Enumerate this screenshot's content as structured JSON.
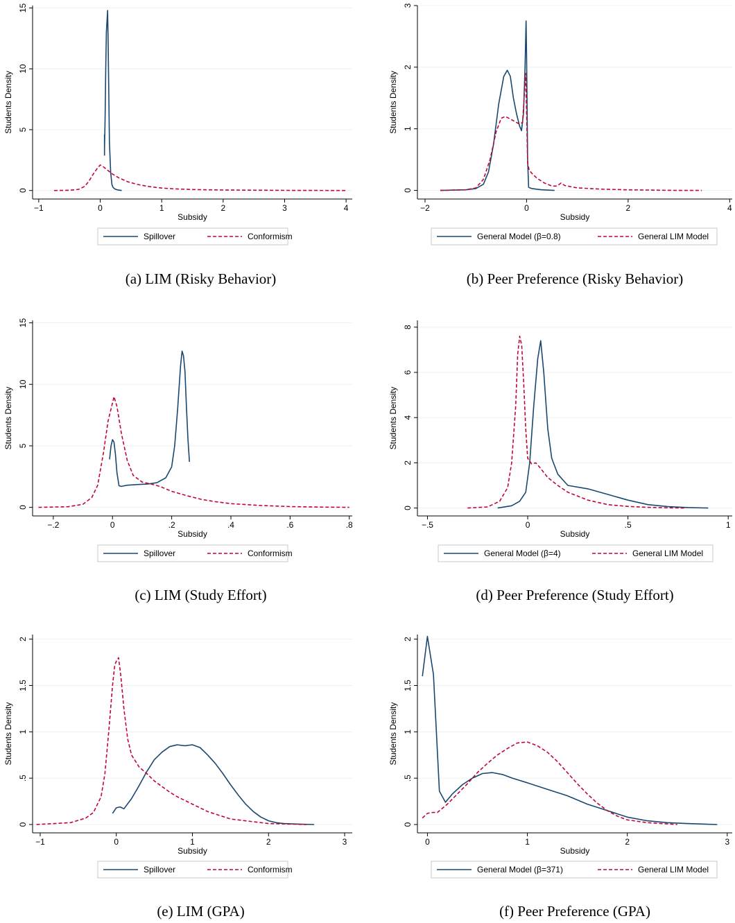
{
  "colors": {
    "blue": "#1a476f",
    "red": "#c10534"
  },
  "chart_data": [
    {
      "type": "line",
      "caption": "(a)  LIM (Risky Behavior)",
      "xlabel": "Subsidy",
      "ylabel": "Students Density",
      "xlim": [
        -1.1,
        4.1
      ],
      "ylim": [
        -0.7,
        15.2
      ],
      "xticks": [
        -1,
        0,
        1,
        2,
        3,
        4
      ],
      "xtick_labels": [
        "−1",
        "0",
        "1",
        "2",
        "3",
        "4"
      ],
      "yticks": [
        0,
        5,
        10,
        15
      ],
      "ytick_labels": [
        "0",
        "5",
        "10",
        "15"
      ],
      "grid": true,
      "legend_position": "bottom",
      "series": [
        {
          "name": "Spillover",
          "style": "solid",
          "color": "#1a476f",
          "x": [
            0.07,
            0.07,
            0.07,
            0.08,
            0.09,
            0.1,
            0.12,
            0.13,
            0.14,
            0.15,
            0.17,
            0.19,
            0.21,
            0.24,
            0.28,
            0.35
          ],
          "y": [
            4.6,
            2.9,
            3.4,
            6,
            10,
            13,
            14.8,
            12,
            8,
            4,
            1.5,
            0.5,
            0.25,
            0.12,
            0.05,
            0
          ]
        },
        {
          "name": "Conformism",
          "style": "dashed",
          "color": "#c10534",
          "x": [
            -0.75,
            -0.5,
            -0.35,
            -0.25,
            -0.18,
            -0.12,
            -0.05,
            0,
            0.05,
            0.1,
            0.2,
            0.3,
            0.45,
            0.6,
            0.8,
            1,
            1.2,
            1.5,
            2,
            3,
            4
          ],
          "y": [
            0,
            0.02,
            0.1,
            0.35,
            0.8,
            1.3,
            1.8,
            2.1,
            1.95,
            1.75,
            1.35,
            1.05,
            0.72,
            0.5,
            0.32,
            0.2,
            0.14,
            0.08,
            0.04,
            0.01,
            0
          ]
        }
      ]
    },
    {
      "type": "line",
      "caption": "(b)  Peer Preference (Risky Behavior)",
      "xlabel": "Subsidy",
      "ylabel": "Students Density",
      "xlim": [
        -2.15,
        4.05
      ],
      "ylim": [
        -0.14,
        3.0
      ],
      "xticks": [
        -2,
        0,
        2,
        4
      ],
      "xtick_labels": [
        "−2",
        "0",
        "2",
        "4"
      ],
      "yticks": [
        0,
        1,
        2,
        3
      ],
      "ytick_labels": [
        "0",
        "1",
        "2",
        "3"
      ],
      "grid": true,
      "legend_position": "bottom",
      "series": [
        {
          "name": "General Model (β=0.8)",
          "style": "solid",
          "color": "#1a476f",
          "x": [
            -1.7,
            -1.2,
            -1.0,
            -0.85,
            -0.75,
            -0.65,
            -0.55,
            -0.45,
            -0.38,
            -0.32,
            -0.26,
            -0.2,
            -0.14,
            -0.1,
            -0.06,
            -0.03,
            -0.01,
            0,
            0.02,
            0.04,
            0.1,
            0.3,
            0.55
          ],
          "y": [
            0,
            0.01,
            0.03,
            0.1,
            0.3,
            0.75,
            1.4,
            1.85,
            1.95,
            1.85,
            1.5,
            1.25,
            1.05,
            0.97,
            1.25,
            2.0,
            2.75,
            2.2,
            0.5,
            0.05,
            0.03,
            0.01,
            0
          ]
        },
        {
          "name": "General LIM Model",
          "style": "dashed",
          "color": "#c10534",
          "x": [
            -1.7,
            -1.2,
            -1.0,
            -0.85,
            -0.72,
            -0.6,
            -0.5,
            -0.42,
            -0.3,
            -0.15,
            -0.08,
            -0.04,
            -0.02,
            0,
            0.02,
            0.05,
            0.1,
            0.2,
            0.35,
            0.5,
            0.6,
            0.68,
            0.75,
            1.0,
            1.5,
            2.0,
            3.0,
            3.45
          ],
          "y": [
            0,
            0.01,
            0.04,
            0.18,
            0.5,
            0.95,
            1.17,
            1.2,
            1.15,
            1.08,
            1.1,
            1.6,
            1.9,
            1.3,
            0.45,
            0.33,
            0.28,
            0.2,
            0.12,
            0.07,
            0.07,
            0.12,
            0.08,
            0.04,
            0.02,
            0.01,
            0,
            0
          ]
        }
      ]
    },
    {
      "type": "line",
      "caption": "(c)  LIM (Study Effort)",
      "xlabel": "Subsidy",
      "ylabel": "Students Density",
      "xlim": [
        -0.27,
        0.81
      ],
      "ylim": [
        -0.7,
        15.2
      ],
      "xticks": [
        -0.2,
        0,
        0.2,
        0.4,
        0.6,
        0.8
      ],
      "xtick_labels": [
        "−.2",
        "0",
        ".2",
        ".4",
        ".6",
        ".8"
      ],
      "yticks": [
        0,
        5,
        10,
        15
      ],
      "ytick_labels": [
        "0",
        "5",
        "10",
        "15"
      ],
      "grid": true,
      "legend_position": "bottom",
      "series": [
        {
          "name": "Spillover",
          "style": "solid",
          "color": "#1a476f",
          "x": [
            -0.01,
            -0.005,
            0,
            0.005,
            0.01,
            0.015,
            0.022,
            0.03,
            0.05,
            0.08,
            0.12,
            0.15,
            0.18,
            0.2,
            0.21,
            0.22,
            0.23,
            0.235,
            0.24,
            0.245,
            0.25,
            0.255,
            0.26
          ],
          "y": [
            3.9,
            5.0,
            5.5,
            5.3,
            4.3,
            2.8,
            1.75,
            1.7,
            1.8,
            1.85,
            1.9,
            2.0,
            2.4,
            3.3,
            5,
            8,
            11.5,
            12.7,
            12.3,
            11,
            8,
            5.5,
            3.7
          ]
        },
        {
          "name": "Conformism",
          "style": "dashed",
          "color": "#c10534",
          "x": [
            -0.25,
            -0.15,
            -0.1,
            -0.07,
            -0.05,
            -0.03,
            -0.015,
            0,
            0.005,
            0.015,
            0.03,
            0.05,
            0.07,
            0.1,
            0.13,
            0.16,
            0.2,
            0.25,
            0.3,
            0.35,
            0.4,
            0.5,
            0.6,
            0.7,
            0.8
          ],
          "y": [
            0,
            0.05,
            0.25,
            0.8,
            1.8,
            4.5,
            7.0,
            8.5,
            9.0,
            8.2,
            6.0,
            3.8,
            2.6,
            2.05,
            1.9,
            1.7,
            1.3,
            0.95,
            0.65,
            0.45,
            0.3,
            0.15,
            0.06,
            0.02,
            0
          ]
        }
      ]
    },
    {
      "type": "line",
      "caption": "(d)  Peer Preference (Study Effort)",
      "xlabel": "Subsidy",
      "ylabel": "Students Density",
      "xlim": [
        -0.55,
        1.02
      ],
      "ylim": [
        -0.35,
        8.3
      ],
      "xticks": [
        -0.5,
        0,
        0.5,
        1
      ],
      "xtick_labels": [
        "−.5",
        "0",
        ".5",
        "1"
      ],
      "yticks": [
        0,
        2,
        4,
        6,
        8
      ],
      "ytick_labels": [
        "0",
        "2",
        "4",
        "6",
        "8"
      ],
      "grid": true,
      "legend_position": "bottom",
      "series": [
        {
          "name": "General Model (β=4)",
          "style": "solid",
          "color": "#1a476f",
          "x": [
            -0.15,
            -0.08,
            -0.04,
            -0.01,
            0.01,
            0.03,
            0.05,
            0.065,
            0.08,
            0.1,
            0.12,
            0.15,
            0.2,
            0.3,
            0.4,
            0.5,
            0.6,
            0.7,
            0.8,
            0.9
          ],
          "y": [
            0,
            0.1,
            0.3,
            0.7,
            2.0,
            4.5,
            6.6,
            7.4,
            6.0,
            3.5,
            2.2,
            1.5,
            1.0,
            0.85,
            0.6,
            0.35,
            0.15,
            0.06,
            0.02,
            0
          ]
        },
        {
          "name": "General LIM Model",
          "style": "dashed",
          "color": "#c10534",
          "x": [
            -0.3,
            -0.2,
            -0.14,
            -0.1,
            -0.08,
            -0.06,
            -0.05,
            -0.04,
            -0.03,
            -0.02,
            -0.01,
            0,
            0.02,
            0.04,
            0.06,
            0.1,
            0.15,
            0.2,
            0.3,
            0.4,
            0.5,
            0.6,
            0.7,
            0.78
          ],
          "y": [
            0,
            0.05,
            0.3,
            0.9,
            2.0,
            4.5,
            6.8,
            7.6,
            7.2,
            5.5,
            3.5,
            2.2,
            1.95,
            2.0,
            1.8,
            1.35,
            1.0,
            0.7,
            0.35,
            0.15,
            0.07,
            0.03,
            0.01,
            0
          ]
        }
      ]
    },
    {
      "type": "line",
      "caption": "(e)  LIM (GPA)",
      "xlabel": "Subsidy",
      "ylabel": "Students Density",
      "xlim": [
        -1.1,
        3.1
      ],
      "ylim": [
        -0.09,
        2.05
      ],
      "xticks": [
        -1,
        0,
        1,
        2,
        3
      ],
      "xtick_labels": [
        "−1",
        "0",
        "1",
        "2",
        "3"
      ],
      "yticks": [
        0,
        0.5,
        1,
        1.5,
        2
      ],
      "ytick_labels": [
        "0",
        ".5",
        "1",
        "1.5",
        "2"
      ],
      "grid": true,
      "legend_position": "bottom",
      "series": [
        {
          "name": "Spillover",
          "style": "solid",
          "color": "#1a476f",
          "x": [
            -0.05,
            0,
            0.05,
            0.1,
            0.2,
            0.3,
            0.4,
            0.5,
            0.6,
            0.7,
            0.8,
            0.9,
            1.0,
            1.1,
            1.2,
            1.3,
            1.4,
            1.5,
            1.6,
            1.7,
            1.8,
            1.9,
            2.0,
            2.1,
            2.2,
            2.4,
            2.6
          ],
          "y": [
            0.12,
            0.18,
            0.19,
            0.17,
            0.28,
            0.42,
            0.57,
            0.7,
            0.78,
            0.84,
            0.86,
            0.85,
            0.86,
            0.83,
            0.75,
            0.66,
            0.55,
            0.43,
            0.32,
            0.22,
            0.14,
            0.08,
            0.04,
            0.02,
            0.01,
            0.004,
            0
          ]
        },
        {
          "name": "Conformism",
          "style": "dashed",
          "color": "#c10534",
          "x": [
            -1.05,
            -0.6,
            -0.4,
            -0.3,
            -0.2,
            -0.15,
            -0.1,
            -0.05,
            -0.02,
            0,
            0.03,
            0.06,
            0.1,
            0.15,
            0.2,
            0.3,
            0.4,
            0.5,
            0.6,
            0.7,
            0.8,
            0.9,
            1.0,
            1.2,
            1.5,
            2.0,
            2.5
          ],
          "y": [
            0,
            0.02,
            0.07,
            0.13,
            0.3,
            0.55,
            1.0,
            1.5,
            1.72,
            1.76,
            1.8,
            1.6,
            1.25,
            0.92,
            0.75,
            0.62,
            0.55,
            0.47,
            0.41,
            0.35,
            0.3,
            0.26,
            0.22,
            0.14,
            0.06,
            0.01,
            0
          ]
        }
      ]
    },
    {
      "type": "line",
      "caption": "(f)  Peer Preference (GPA)",
      "xlabel": "Subsidy",
      "ylabel": "Students Density",
      "xlim": [
        -0.1,
        3.05
      ],
      "ylim": [
        -0.09,
        2.05
      ],
      "xticks": [
        0,
        1,
        2,
        3
      ],
      "xtick_labels": [
        "0",
        "1",
        "2",
        "3"
      ],
      "yticks": [
        0,
        0.5,
        1,
        1.5,
        2
      ],
      "ytick_labels": [
        "0",
        ".5",
        "1",
        "1.5",
        "2"
      ],
      "grid": true,
      "legend_position": "bottom",
      "series": [
        {
          "name": "General Model (β=371)",
          "style": "solid",
          "color": "#1a476f",
          "x": [
            -0.05,
            0,
            0.06,
            0.12,
            0.18,
            0.25,
            0.35,
            0.45,
            0.55,
            0.65,
            0.75,
            0.85,
            1.0,
            1.2,
            1.4,
            1.6,
            1.8,
            2.0,
            2.2,
            2.4,
            2.6,
            2.9
          ],
          "y": [
            1.6,
            2.03,
            1.62,
            0.36,
            0.24,
            0.33,
            0.43,
            0.5,
            0.55,
            0.56,
            0.54,
            0.5,
            0.45,
            0.38,
            0.31,
            0.22,
            0.15,
            0.08,
            0.04,
            0.02,
            0.01,
            0
          ]
        },
        {
          "name": "General LIM Model",
          "style": "dashed",
          "color": "#c10534",
          "x": [
            -0.05,
            0,
            0.05,
            0.1,
            0.2,
            0.3,
            0.4,
            0.5,
            0.6,
            0.7,
            0.8,
            0.9,
            1.0,
            1.1,
            1.2,
            1.3,
            1.4,
            1.5,
            1.6,
            1.7,
            1.8,
            1.9,
            2.0,
            2.2,
            2.5
          ],
          "y": [
            0.07,
            0.12,
            0.13,
            0.13,
            0.22,
            0.33,
            0.44,
            0.56,
            0.66,
            0.75,
            0.82,
            0.88,
            0.89,
            0.85,
            0.78,
            0.68,
            0.56,
            0.44,
            0.33,
            0.23,
            0.15,
            0.09,
            0.05,
            0.02,
            0
          ]
        }
      ]
    }
  ]
}
